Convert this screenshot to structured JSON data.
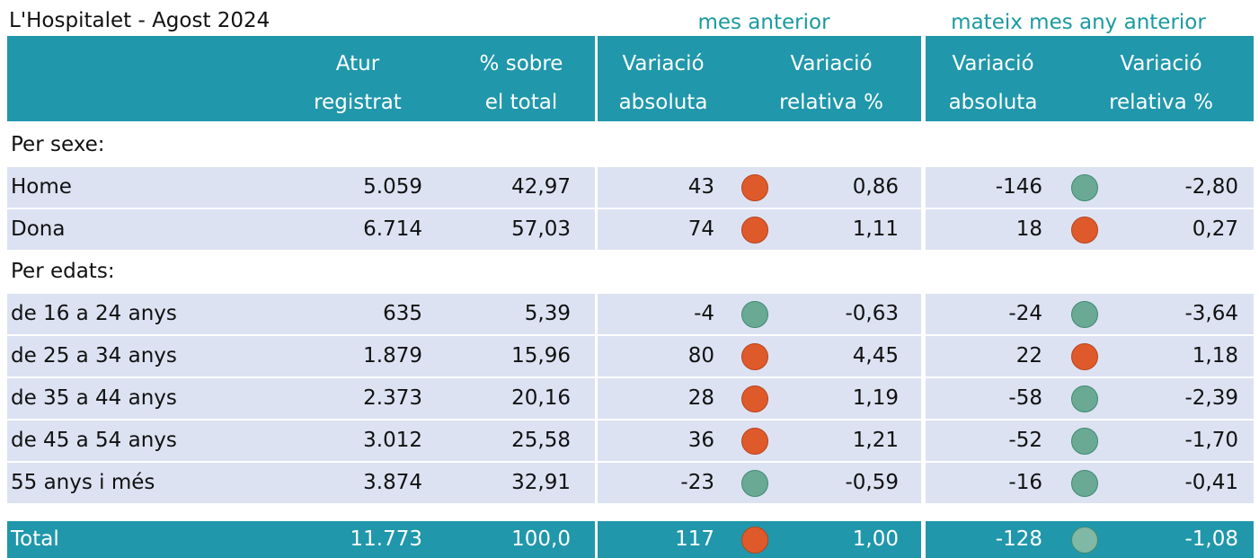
{
  "title": "L'Hospitalet - Agost 2024",
  "group_headers": [
    "mes anterior",
    "mateix mes any anterior"
  ],
  "columns": [
    [
      "Atur",
      "registrat"
    ],
    [
      "% sobre",
      "el total"
    ],
    [
      "Variació",
      "absoluta"
    ],
    [
      "Variació",
      "relativa %"
    ],
    [
      "Variació",
      "absoluta"
    ],
    [
      "Variació",
      "relativa %"
    ]
  ],
  "sections": [
    {
      "label": "Per sexe:",
      "rows": [
        [
          "Home",
          "5.059",
          "42,97",
          "43",
          "0,86",
          "-146",
          "-2,80"
        ],
        [
          "Dona",
          "6.714",
          "57,03",
          "74",
          "1,11",
          "18",
          "0,27"
        ]
      ]
    },
    {
      "label": "Per edats:",
      "rows": [
        [
          "de 16 a 24 anys",
          "635",
          "5,39",
          "-4",
          "-0,63",
          "-24",
          "-3,64"
        ],
        [
          "de 25 a 34 anys",
          "1.879",
          "15,96",
          "80",
          "4,45",
          "22",
          "1,18"
        ],
        [
          "de 35 a 44 anys",
          "2.373",
          "20,16",
          "28",
          "1,19",
          "-58",
          "-2,39"
        ],
        [
          "de 45 a 54 anys",
          "3.012",
          "25,58",
          "36",
          "1,21",
          "-52",
          "-1,70"
        ],
        [
          "55 anys i més",
          "3.874",
          "32,91",
          "-23",
          "-0,59",
          "-16",
          "-0,41"
        ]
      ]
    }
  ],
  "total": [
    "Total",
    "11.773",
    "100,0",
    "117",
    "1,00",
    "-128",
    "-1,08"
  ]
}
